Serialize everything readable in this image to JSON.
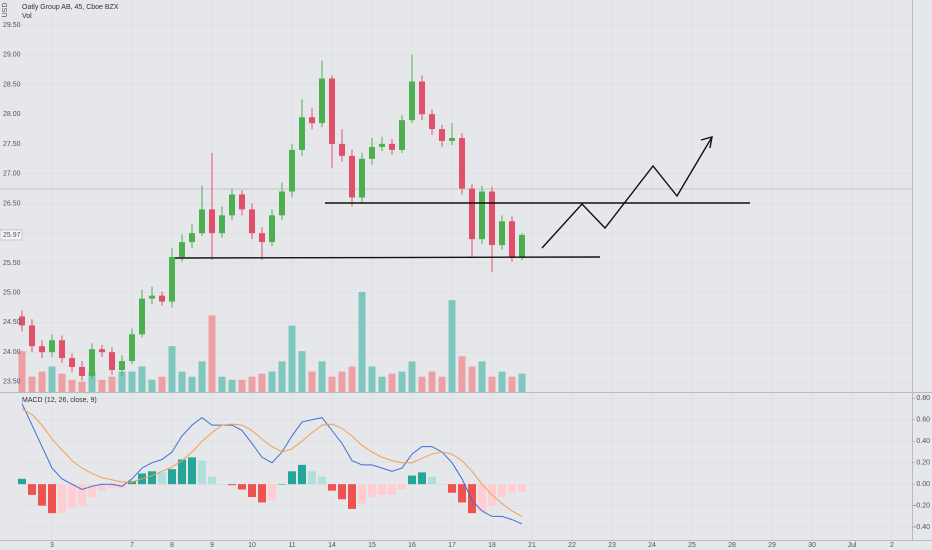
{
  "chart_data": [
    {
      "type": "candlestick",
      "title": "Oatly Group AB, 45, Cboe BZX",
      "subtitle": "Vol",
      "axis_label": "USD",
      "last_price": {
        "value": 25.97,
        "label": "25.97"
      },
      "up_color": "#4caf50",
      "down_color": "#e0506a",
      "volume_up_color": "#5bbcb0",
      "volume_down_color": "#f08a8c",
      "x": [
        0.25,
        0.5,
        0.75,
        1,
        1.25,
        1.5,
        1.75,
        2,
        2.25,
        2.5,
        2.75,
        3,
        3.25,
        3.5,
        3.75,
        4,
        4.25,
        4.5,
        4.75,
        5,
        5.25,
        5.5,
        5.75,
        6,
        6.25,
        6.5,
        6.75,
        7,
        7.25,
        7.5,
        7.75,
        8,
        8.25,
        8.5,
        8.75,
        9,
        9.25,
        9.5,
        9.75,
        10,
        10.25,
        10.5,
        10.75,
        11,
        11.25,
        11.5,
        11.75,
        12,
        12.25,
        12.5,
        12.75
      ],
      "open": [
        24.6,
        24.45,
        24.1,
        24.0,
        24.2,
        23.9,
        23.75,
        23.6,
        24.05,
        24.0,
        23.7,
        23.85,
        24.3,
        24.9,
        24.95,
        24.85,
        25.6,
        25.85,
        26.0,
        26.4,
        26.0,
        26.3,
        26.65,
        26.4,
        26.0,
        25.85,
        26.3,
        26.7,
        27.4,
        27.95,
        27.85,
        28.6,
        27.5,
        27.3,
        26.6,
        27.25,
        27.45,
        27.5,
        27.4,
        27.9,
        28.55,
        28.0,
        27.75,
        27.55,
        27.6,
        26.75,
        25.9,
        26.7,
        25.8,
        26.2,
        25.6
      ],
      "high": [
        24.7,
        24.55,
        24.2,
        24.3,
        24.28,
        23.98,
        23.85,
        24.15,
        24.12,
        24.08,
        23.95,
        24.4,
        25.05,
        25.1,
        25.02,
        25.75,
        25.98,
        26.15,
        26.8,
        27.35,
        26.45,
        26.75,
        26.72,
        26.5,
        26.1,
        26.4,
        26.85,
        27.5,
        28.25,
        28.1,
        28.9,
        28.65,
        27.75,
        27.4,
        27.35,
        27.6,
        27.62,
        27.58,
        27.98,
        29.0,
        28.65,
        28.08,
        27.82,
        27.85,
        27.68,
        26.82,
        26.8,
        26.78,
        26.3,
        26.28,
        26.0
      ],
      "low": [
        24.35,
        24.0,
        23.9,
        23.92,
        23.82,
        23.66,
        23.52,
        23.55,
        23.92,
        23.62,
        23.6,
        23.8,
        24.25,
        24.8,
        24.78,
        24.75,
        25.52,
        25.75,
        25.95,
        25.55,
        25.92,
        26.22,
        26.3,
        25.9,
        25.55,
        25.78,
        26.22,
        26.6,
        27.3,
        27.75,
        27.78,
        27.1,
        27.2,
        26.45,
        26.5,
        27.15,
        27.38,
        27.32,
        27.35,
        27.85,
        27.9,
        27.65,
        27.45,
        27.48,
        26.65,
        25.6,
        25.82,
        25.35,
        25.72,
        25.52,
        25.55
      ],
      "close": [
        24.45,
        24.1,
        24.0,
        24.2,
        23.9,
        23.75,
        23.6,
        24.05,
        24.0,
        23.7,
        23.85,
        24.3,
        24.9,
        24.95,
        24.85,
        25.6,
        25.85,
        26.0,
        26.4,
        26.0,
        26.3,
        26.65,
        26.4,
        26.0,
        25.85,
        26.3,
        26.7,
        27.4,
        27.95,
        27.85,
        28.6,
        27.5,
        27.3,
        26.6,
        27.25,
        27.45,
        27.5,
        27.4,
        27.9,
        28.55,
        28.0,
        27.75,
        27.55,
        27.6,
        26.75,
        25.9,
        26.7,
        25.8,
        26.2,
        25.6,
        25.97
      ],
      "volume": [
        400000,
        150000,
        200000,
        250000,
        180000,
        120000,
        100000,
        200000,
        120000,
        150000,
        200000,
        200000,
        250000,
        120000,
        150000,
        450000,
        200000,
        150000,
        300000,
        750000,
        150000,
        120000,
        120000,
        150000,
        180000,
        200000,
        300000,
        650000,
        400000,
        200000,
        300000,
        150000,
        200000,
        250000,
        980000,
        250000,
        150000,
        180000,
        200000,
        300000,
        150000,
        200000,
        150000,
        900000,
        350000,
        250000,
        300000,
        150000,
        200000,
        150000,
        180000
      ],
      "xlim": [
        0.15,
        22.5
      ],
      "xticks": [
        {
          "value": 1,
          "label": "3"
        },
        {
          "value": 3,
          "label": "7"
        },
        {
          "value": 4,
          "label": "8"
        },
        {
          "value": 5,
          "label": "9"
        },
        {
          "value": 6,
          "label": "10"
        },
        {
          "value": 7,
          "label": "11"
        },
        {
          "value": 8,
          "label": "14"
        },
        {
          "value": 9,
          "label": "15"
        },
        {
          "value": 10,
          "label": "16"
        },
        {
          "value": 11,
          "label": "17"
        },
        {
          "value": 12,
          "label": "18"
        },
        {
          "value": 13,
          "label": "21"
        },
        {
          "value": 14,
          "label": "22"
        },
        {
          "value": 15,
          "label": "23"
        },
        {
          "value": 16,
          "label": "24"
        },
        {
          "value": 17,
          "label": "25"
        },
        {
          "value": 18,
          "label": "28"
        },
        {
          "value": 19,
          "label": "29"
        },
        {
          "value": 20,
          "label": "30"
        },
        {
          "value": 21,
          "label": "Jul"
        },
        {
          "value": 22,
          "label": "2"
        }
      ],
      "ylim": [
        23.33,
        29.92
      ],
      "yticks": [
        {
          "value": 23.5,
          "label": "23.50"
        },
        {
          "value": 24,
          "label": "24.00"
        },
        {
          "value": 24.5,
          "label": "24.50"
        },
        {
          "value": 25,
          "label": "25.00"
        },
        {
          "value": 25.5,
          "label": "25.50"
        },
        {
          "value": 26,
          "label": "26.00"
        },
        {
          "value": 26.5,
          "label": "26.50"
        },
        {
          "value": 27,
          "label": "27.00"
        },
        {
          "value": 27.5,
          "label": "27.50"
        },
        {
          "value": 28,
          "label": "28.00"
        },
        {
          "value": 28.5,
          "label": "28.50"
        },
        {
          "value": 29,
          "label": "29.00"
        },
        {
          "value": 29.5,
          "label": "29.50"
        }
      ],
      "grid": true
    },
    {
      "type": "macd",
      "title": "MACD (12, 26, close, 9)",
      "x": [
        0.25,
        0.5,
        0.75,
        1,
        1.25,
        1.5,
        1.75,
        2,
        2.25,
        2.5,
        2.75,
        3,
        3.25,
        3.5,
        3.75,
        4,
        4.25,
        4.5,
        4.75,
        5,
        5.25,
        5.5,
        5.75,
        6,
        6.25,
        6.5,
        6.75,
        7,
        7.25,
        7.5,
        7.75,
        8,
        8.25,
        8.5,
        8.75,
        9,
        9.25,
        9.5,
        9.75,
        10,
        10.25,
        10.5,
        10.75,
        11,
        11.25,
        11.5,
        11.75,
        12,
        12.25,
        12.5,
        12.75
      ],
      "series": [
        {
          "colors": [
            "#26a69a",
            "#b2dfdb",
            "#ffcdd2",
            "#ef5350"
          ],
          "values": [
            0.05,
            -0.1,
            -0.2,
            -0.27,
            -0.27,
            -0.22,
            -0.2,
            -0.12,
            -0.06,
            -0.04,
            -0.04,
            0.03,
            0.1,
            0.12,
            0.11,
            0.14,
            0.23,
            0.25,
            0.22,
            0.07,
            0.0,
            -0.01,
            -0.05,
            -0.12,
            -0.17,
            -0.15,
            0.0,
            0.12,
            0.18,
            0.12,
            0.07,
            -0.06,
            -0.14,
            -0.23,
            -0.18,
            -0.12,
            -0.1,
            -0.1,
            -0.05,
            0.08,
            0.11,
            0.07,
            0.0,
            -0.08,
            -0.17,
            -0.27,
            -0.25,
            -0.2,
            -0.12,
            -0.08,
            -0.07
          ]
        },
        {
          "color": "#3f6fd8",
          "values": [
            0.75,
            0.55,
            0.35,
            0.15,
            0.05,
            0.0,
            -0.05,
            -0.02,
            0.0,
            0.0,
            -0.02,
            0.05,
            0.15,
            0.2,
            0.23,
            0.3,
            0.45,
            0.55,
            0.62,
            0.55,
            0.55,
            0.55,
            0.5,
            0.38,
            0.25,
            0.2,
            0.3,
            0.45,
            0.58,
            0.6,
            0.62,
            0.5,
            0.38,
            0.22,
            0.18,
            0.18,
            0.15,
            0.12,
            0.15,
            0.28,
            0.35,
            0.35,
            0.3,
            0.2,
            0.05,
            -0.15,
            -0.25,
            -0.3,
            -0.3,
            -0.33,
            -0.37
          ]
        },
        {
          "color": "#f0a050",
          "values": [
            0.7,
            0.65,
            0.55,
            0.42,
            0.32,
            0.22,
            0.15,
            0.1,
            0.06,
            0.04,
            0.02,
            0.02,
            0.05,
            0.08,
            0.12,
            0.16,
            0.22,
            0.3,
            0.4,
            0.48,
            0.55,
            0.56,
            0.55,
            0.5,
            0.42,
            0.35,
            0.3,
            0.33,
            0.4,
            0.48,
            0.55,
            0.56,
            0.52,
            0.45,
            0.36,
            0.3,
            0.25,
            0.22,
            0.2,
            0.2,
            0.24,
            0.28,
            0.3,
            0.28,
            0.22,
            0.12,
            0.0,
            -0.1,
            -0.18,
            -0.25,
            -0.3
          ]
        }
      ],
      "xlim": [
        0.15,
        22.5
      ],
      "ylim": [
        -0.52,
        0.84
      ],
      "yticks": [
        {
          "value": -0.4,
          "label": "-0.40"
        },
        {
          "value": -0.2,
          "label": "-0.20"
        },
        {
          "value": 0,
          "label": "0.00"
        },
        {
          "value": 0.2,
          "label": "0.20"
        },
        {
          "value": 0.4,
          "label": "0.40"
        },
        {
          "value": 0.6,
          "label": "0.60"
        },
        {
          "value": 0.8,
          "label": "0.80"
        }
      ],
      "grid": true
    }
  ]
}
